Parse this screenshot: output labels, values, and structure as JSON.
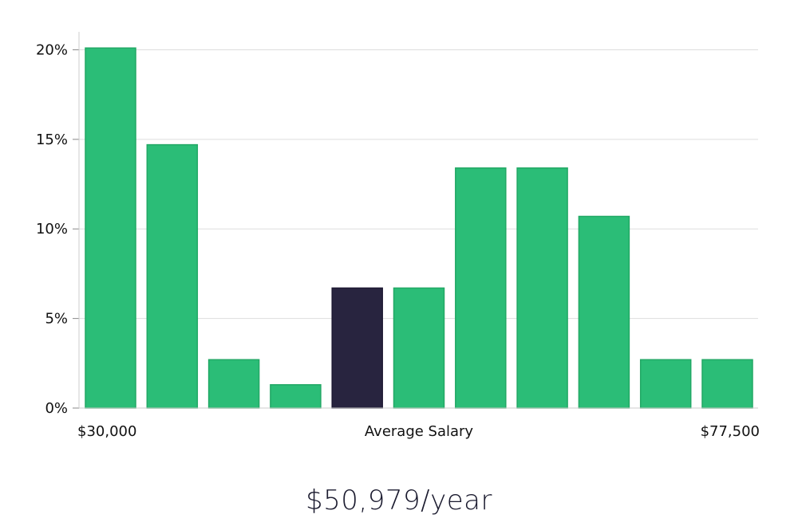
{
  "chart_data": {
    "type": "bar",
    "title": "",
    "xlabel": "Average Salary",
    "ylabel": "",
    "x_start_label": "$30,000",
    "x_end_label": "$77,500",
    "ylim": [
      0,
      21
    ],
    "yticks": [
      0,
      5,
      10,
      15,
      20
    ],
    "ytick_labels": [
      "0%",
      "5%",
      "10%",
      "15%",
      "20%"
    ],
    "values": [
      20.1,
      14.7,
      2.7,
      1.3,
      6.7,
      6.7,
      13.4,
      13.4,
      10.7,
      2.7,
      2.7
    ],
    "highlight_index": 4,
    "grid": true,
    "colors": {
      "bar": "#2bbd77",
      "bar_edge": "#22a865",
      "highlight": "#28243f",
      "grid": "#dddddd",
      "axis": "#cccccc"
    }
  },
  "summary": {
    "salary_text": "$50,979/year"
  }
}
